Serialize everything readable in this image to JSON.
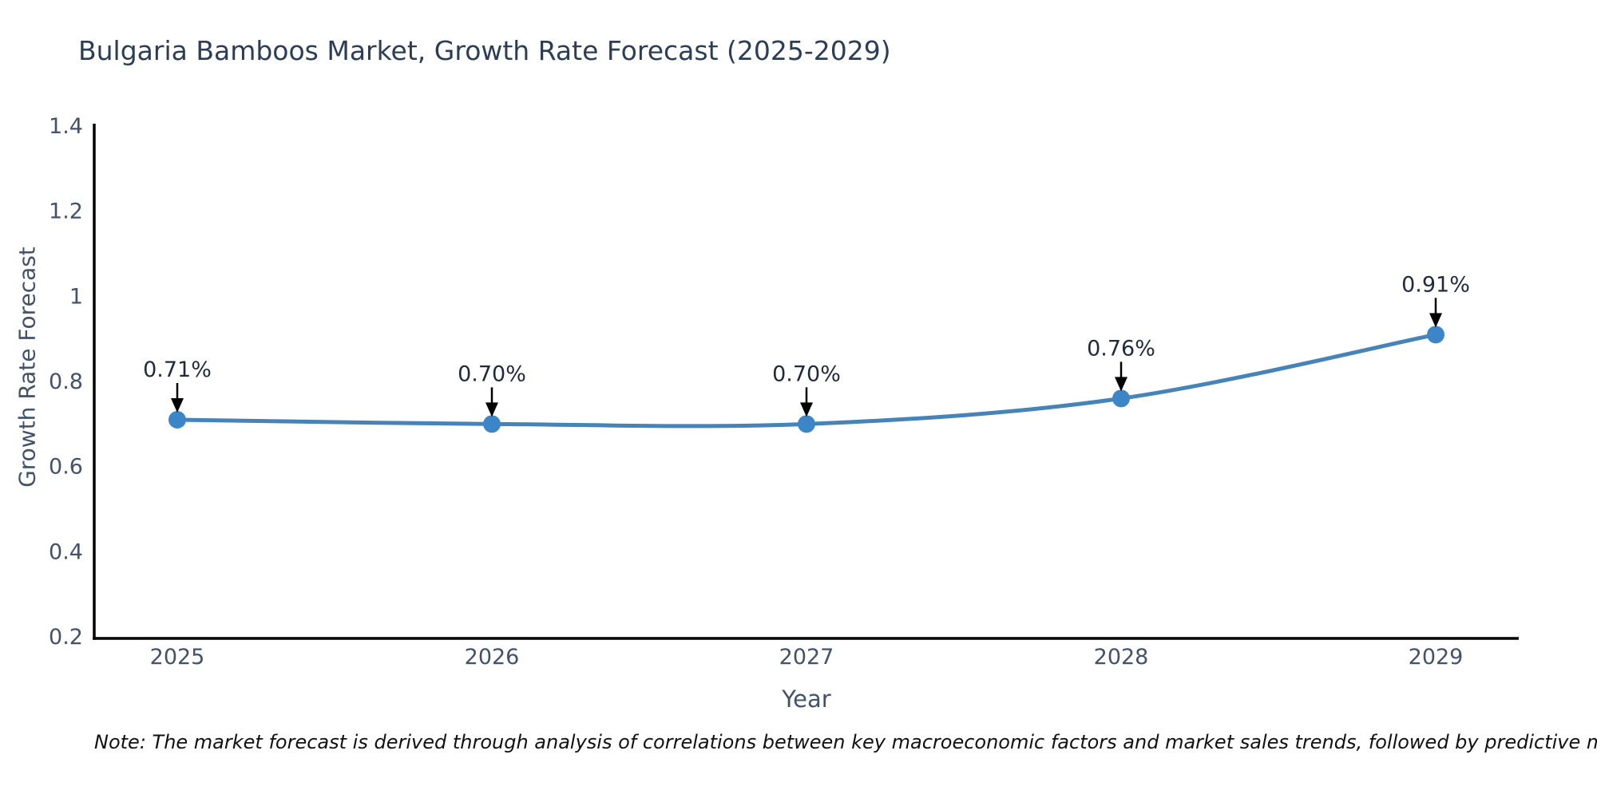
{
  "page": {
    "background": "#ffffff"
  },
  "chart_data": {
    "type": "line",
    "title": "Bulgaria Bamboos Market, Growth Rate Forecast (2025-2029)",
    "xlabel": "Year",
    "ylabel": "Growth Rate Forecast",
    "categories": [
      "2025",
      "2026",
      "2027",
      "2028",
      "2029"
    ],
    "series": [
      {
        "name": "Growth Rate Forecast",
        "values": [
          0.71,
          0.7,
          0.7,
          0.76,
          0.91
        ]
      }
    ],
    "point_labels": [
      "0.71%",
      "0.70%",
      "0.70%",
      "0.76%",
      "0.91%"
    ],
    "ylim": [
      0.2,
      1.4
    ],
    "yticks": [
      0.2,
      0.4,
      0.6,
      0.8,
      1.0,
      1.2,
      1.4
    ],
    "ytick_labels": [
      "0.2",
      "0.4",
      "0.6",
      "0.8",
      "1",
      "1.2",
      "1.4"
    ],
    "xtick_labels": [
      "2025",
      "2026",
      "2027",
      "2028",
      "2029"
    ],
    "grid": false,
    "legend_position": "none",
    "line_shape": "spline",
    "annotation_arrows": true
  },
  "note": "Note: The market forecast is derived through analysis of correlations between key macroeconomic factors and market sales trends, followed by predictive modeling to project future sales",
  "colors": {
    "line": "#4583b8",
    "marker": "#3c85c6",
    "axis": "#000000",
    "arrow": "#000000",
    "title_text": "#2c3e56",
    "tick_text": "#42526b",
    "annotation_text": "#1f2b3d",
    "note_text": "#111111"
  }
}
